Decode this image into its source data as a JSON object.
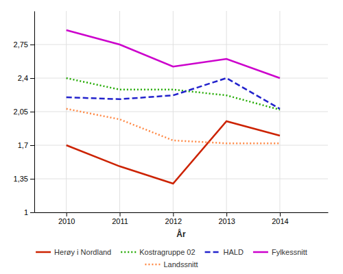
{
  "chart_data": {
    "type": "line",
    "x_label": "År",
    "x": [
      2010,
      2011,
      2012,
      2013,
      2014
    ],
    "series": [
      {
        "name": "Herøy i Nordland",
        "color": "#cc2200",
        "line_style": "solid",
        "values": [
          1.7,
          1.48,
          1.3,
          1.95,
          1.8
        ]
      },
      {
        "name": "Kostragruppe 02",
        "color": "#22aa00",
        "line_style": "dotted",
        "values": [
          2.4,
          2.28,
          2.28,
          2.22,
          2.07
        ]
      },
      {
        "name": "HALD",
        "color": "#2222cc",
        "line_style": "dashed",
        "values": [
          2.2,
          2.18,
          2.22,
          2.4,
          2.08
        ]
      },
      {
        "name": "Fylkessnitt",
        "color": "#cc00cc",
        "line_style": "solid",
        "values": [
          2.9,
          2.75,
          2.52,
          2.6,
          2.4
        ]
      },
      {
        "name": "Landssnitt",
        "color": "#ff8844",
        "line_style": "dotted",
        "values": [
          2.08,
          1.97,
          1.75,
          1.72,
          1.72
        ]
      }
    ],
    "xlim": [
      2009.4,
      2014.9
    ],
    "xticks": [
      2010,
      2011,
      2012,
      2013,
      2014
    ],
    "ylim": [
      1.0,
      3.1
    ],
    "yticks": [
      1,
      {
        "value": 1.35,
        "label": "1,35"
      },
      {
        "value": 1.7,
        "label": "1,7"
      },
      {
        "value": 2.05,
        "label": "2,05"
      },
      {
        "value": 2.4,
        "label": "2,4"
      },
      {
        "value": 2.75,
        "label": "2,75"
      }
    ],
    "grid": true,
    "legend": "bottom"
  }
}
